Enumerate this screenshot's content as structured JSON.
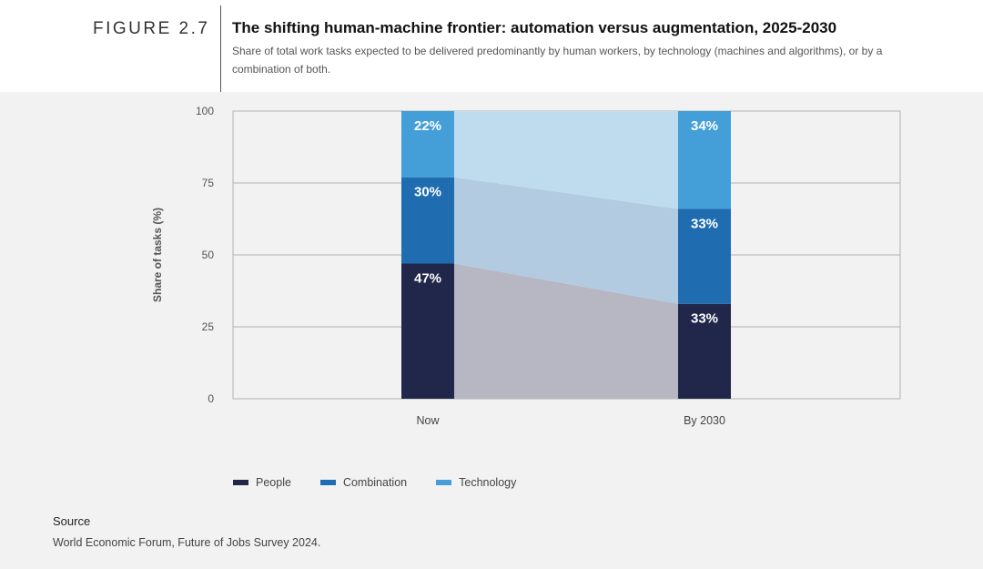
{
  "figure": {
    "number": "FIGURE 2.7",
    "title": "The shifting human-machine frontier: automation versus augmentation, 2025-2030",
    "subtitle": "Share of total work tasks expected to be delivered predominantly by human workers, by technology (machines and algorithms), or by a combination of both."
  },
  "colors": {
    "people": "#21274a",
    "combination": "#1f6cb0",
    "technology": "#449fd8",
    "gridline": "#b3b3b3",
    "panel_bg": "#f2f2f2"
  },
  "chart_data": {
    "type": "bar",
    "stacked": true,
    "categories": [
      "Now",
      "By 2030"
    ],
    "series": [
      {
        "name": "People",
        "values": [
          47,
          33
        ],
        "labels": [
          "47%",
          "33%"
        ]
      },
      {
        "name": "Combination",
        "values": [
          30,
          33
        ],
        "labels": [
          "30%",
          "33%"
        ]
      },
      {
        "name": "Technology",
        "values": [
          22,
          34
        ],
        "labels": [
          "22%",
          "34%"
        ]
      }
    ],
    "xlabel": "",
    "ylabel": "Share of tasks (%)",
    "ylim": [
      0,
      100
    ],
    "yticks": [
      "0",
      "25",
      "50",
      "75",
      "100"
    ],
    "grid": true,
    "legend_position": "bottom-left"
  },
  "source": {
    "heading": "Source",
    "text": "World Economic Forum, Future of Jobs Survey 2024."
  }
}
